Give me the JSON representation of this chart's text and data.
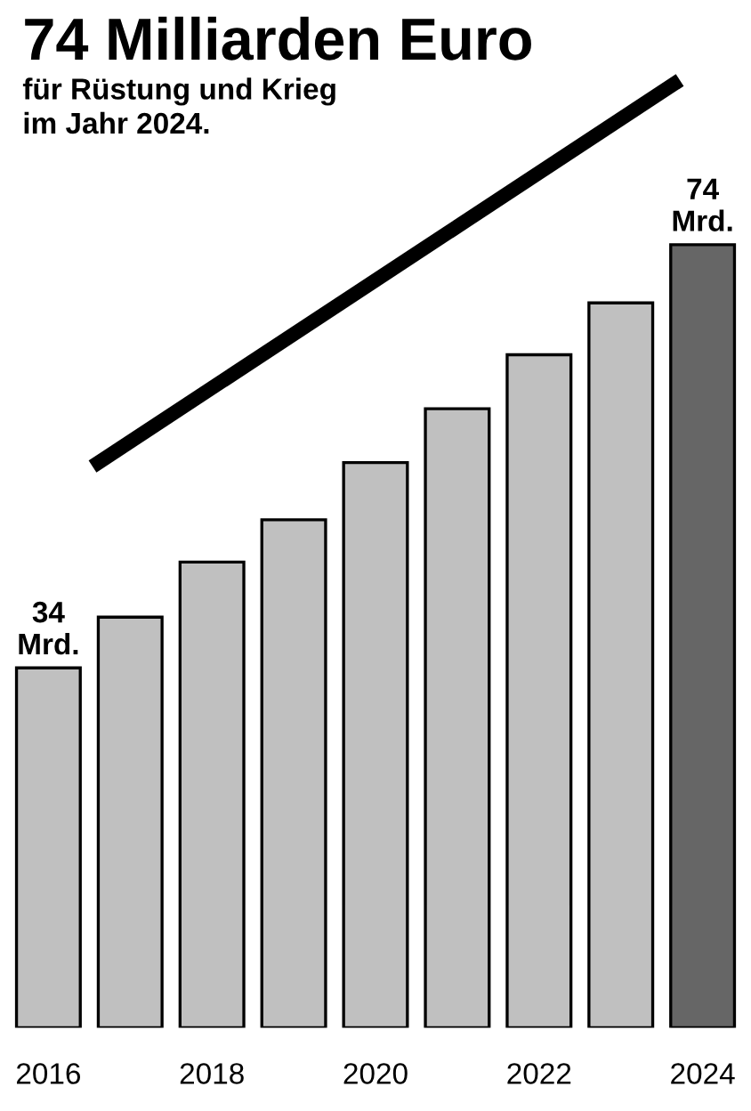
{
  "chart_data": {
    "type": "bar",
    "title": "74 Milliarden Euro",
    "subtitle": "für Rüstung und Krieg\nim Jahr 2024.",
    "categories": [
      "2016",
      null,
      "2018",
      null,
      "2020",
      null,
      "2022",
      null,
      "2024"
    ],
    "values": [
      34,
      38.8,
      44,
      48,
      53.4,
      58.5,
      63.6,
      68.5,
      74
    ],
    "colors": [
      "#c0c0c0",
      "#c0c0c0",
      "#c0c0c0",
      "#c0c0c0",
      "#c0c0c0",
      "#c0c0c0",
      "#c0c0c0",
      "#c0c0c0",
      "#666666"
    ],
    "value_labels": [
      "34\nMrd.",
      null,
      null,
      null,
      null,
      null,
      null,
      null,
      "74\nMrd."
    ],
    "grid": false,
    "legend": false
  }
}
